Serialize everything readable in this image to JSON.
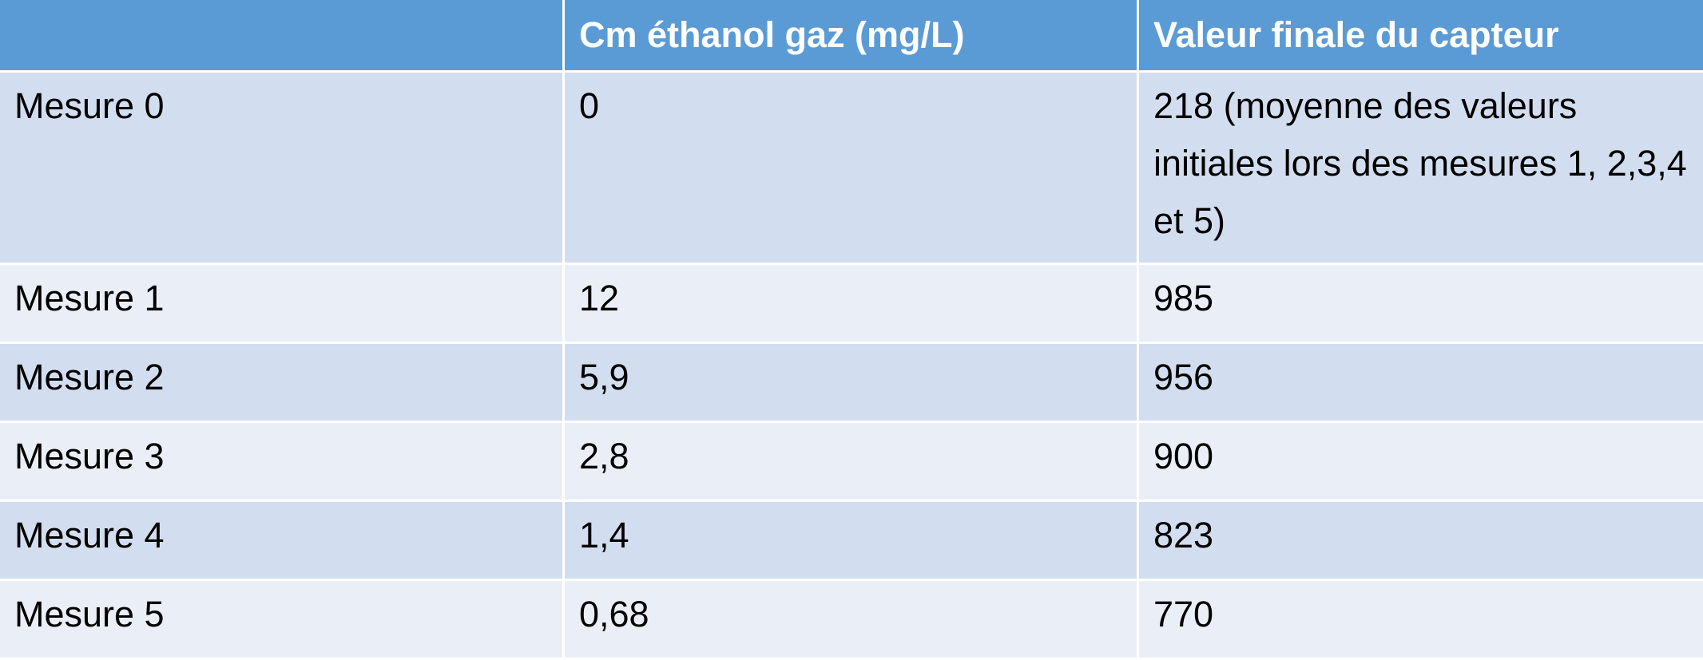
{
  "table": {
    "header": [
      "Cm éthanol gaz (mg/L)",
      "Valeur finale du capteur"
    ],
    "rows": [
      [
        "Mesure 0",
        "0",
        "218 (moyenne des valeurs initiales lors des mesures 1, 2,3,4 et 5)"
      ],
      [
        "Mesure 1",
        "12",
        "985"
      ],
      [
        "Mesure 2",
        "5,9",
        "956"
      ],
      [
        "Mesure 3",
        "2,8",
        "900"
      ],
      [
        "Mesure 4",
        "1,4",
        "823"
      ],
      [
        "Mesure 5",
        "0,68",
        "770"
      ]
    ]
  }
}
